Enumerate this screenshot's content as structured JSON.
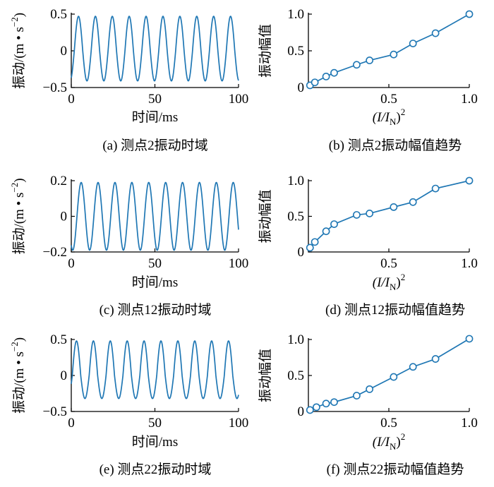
{
  "chart_data": [
    {
      "id": "a",
      "type": "line",
      "caption": "(a)  测点2振动时域",
      "xlabel": "时间/ms",
      "ylabel": "振动/(m • s",
      "ylabel_sup": "−2",
      "ylabel_end": ")",
      "xlim": [
        0,
        100
      ],
      "ylim": [
        -0.5,
        0.5
      ],
      "xticks": [
        0,
        50,
        100
      ],
      "xtick_labels": [
        "0",
        "50",
        "100"
      ],
      "yticks": [
        -0.5,
        0,
        0.5
      ],
      "ytick_labels": [
        "−0.5",
        "0",
        "0.5"
      ],
      "waveform": {
        "amplitude_pos": 0.47,
        "amplitude_neg": -0.41,
        "period_ms": 10.1,
        "phase_ms": 1.8,
        "duration_ms": 100
      }
    },
    {
      "id": "b",
      "type": "line",
      "caption": "(b)  测点2振动幅值趋势",
      "xlabel": "(I/I",
      "xlabel_sub": "N",
      "xlabel_end": ")",
      "xlabel_sup": "2",
      "ylabel": "振动幅值",
      "xlim": [
        0,
        1
      ],
      "ylim": [
        0,
        1
      ],
      "xticks": [
        0.5,
        1.0
      ],
      "xtick_labels": [
        "0.5",
        "1.0"
      ],
      "yticks": [
        0,
        0.5,
        1.0
      ],
      "ytick_labels": [
        "0",
        "0.5",
        "1.0"
      ],
      "x": [
        0.01,
        0.04,
        0.11,
        0.16,
        0.3,
        0.38,
        0.53,
        0.65,
        0.79,
        1.0
      ],
      "y": [
        0.03,
        0.07,
        0.15,
        0.2,
        0.31,
        0.37,
        0.45,
        0.6,
        0.74,
        1.0
      ]
    },
    {
      "id": "c",
      "type": "line",
      "caption": "(c)  测点12振动时域",
      "xlabel": "时间/ms",
      "ylabel": "振动/(m • s",
      "ylabel_sup": "−2",
      "ylabel_end": ")",
      "xlim": [
        0,
        100
      ],
      "ylim": [
        -0.2,
        0.2
      ],
      "xticks": [
        0,
        50,
        100
      ],
      "xtick_labels": [
        "0",
        "50",
        "100"
      ],
      "yticks": [
        -0.2,
        0,
        0.2
      ],
      "ytick_labels": [
        "−0.2",
        "0",
        "0.2"
      ],
      "waveform": {
        "amplitude_pos": 0.19,
        "amplitude_neg": -0.19,
        "period_ms": 10.1,
        "phase_ms": 3.4,
        "duration_ms": 100
      }
    },
    {
      "id": "d",
      "type": "line",
      "caption": "(d)  测点12振动幅值趋势",
      "xlabel": "(I/I",
      "xlabel_sub": "N",
      "xlabel_end": ")",
      "xlabel_sup": "2",
      "ylabel": "振动幅值",
      "xlim": [
        0,
        1
      ],
      "ylim": [
        0,
        1
      ],
      "xticks": [
        0.5,
        1.0
      ],
      "xtick_labels": [
        "0.5",
        "1.0"
      ],
      "yticks": [
        0,
        0.5,
        1.0
      ],
      "ytick_labels": [
        "0",
        "0.5",
        "1.0"
      ],
      "x": [
        0.01,
        0.04,
        0.11,
        0.16,
        0.3,
        0.38,
        0.53,
        0.65,
        0.79,
        1.0
      ],
      "y": [
        0.06,
        0.14,
        0.29,
        0.39,
        0.52,
        0.54,
        0.63,
        0.7,
        0.89,
        1.0
      ]
    },
    {
      "id": "e",
      "type": "line",
      "caption": "(e)  测点22振动时域",
      "xlabel": "时间/ms",
      "ylabel": "振动/(m • s",
      "ylabel_sup": "−2",
      "ylabel_end": ")",
      "xlim": [
        0,
        100
      ],
      "ylim": [
        -0.5,
        0.5
      ],
      "xticks": [
        0,
        50,
        100
      ],
      "xtick_labels": [
        "0",
        "50",
        "100"
      ],
      "yticks": [
        -0.5,
        0,
        0.5
      ],
      "ytick_labels": [
        "−0.5",
        "0",
        "0.5"
      ],
      "waveform": {
        "amplitude_pos": 0.48,
        "amplitude_neg": -0.32,
        "period_ms": 10.1,
        "phase_ms": 0.6,
        "duration_ms": 100
      }
    },
    {
      "id": "f",
      "type": "line",
      "caption": "(f)  测点22振动幅值趋势",
      "xlabel": "(I/I",
      "xlabel_sub": "N",
      "xlabel_end": ")",
      "xlabel_sup": "2",
      "ylabel": "振动幅值",
      "xlim": [
        0,
        1
      ],
      "ylim": [
        0,
        1
      ],
      "xticks": [
        0.5,
        1.0
      ],
      "xtick_labels": [
        "0.5",
        "1.0"
      ],
      "yticks": [
        0,
        0.5,
        1.0
      ],
      "ytick_labels": [
        "0",
        "0.5",
        "1.0"
      ],
      "x": [
        0.01,
        0.05,
        0.11,
        0.16,
        0.3,
        0.38,
        0.53,
        0.65,
        0.79,
        1.0
      ],
      "y": [
        0.02,
        0.06,
        0.11,
        0.13,
        0.22,
        0.31,
        0.48,
        0.62,
        0.73,
        1.01
      ]
    }
  ],
  "colors": {
    "line": "#1f77b4",
    "axis": "#000000",
    "marker_fill": "#ffffff"
  }
}
